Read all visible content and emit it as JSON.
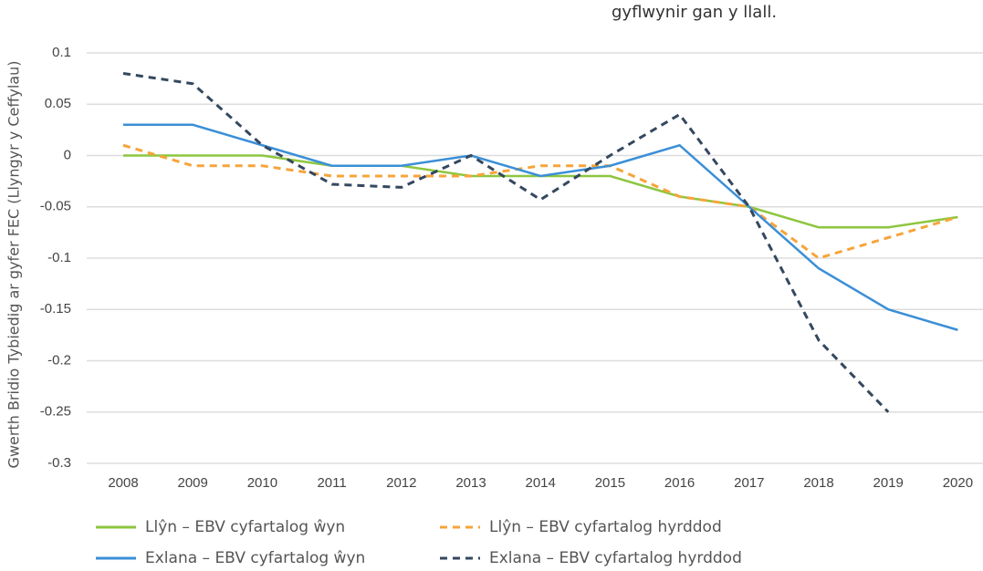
{
  "chart_data": {
    "type": "line",
    "subtitle": "gyflwynir gan y llall.",
    "ylabel": "Gwerth Bridio Tybiedig ar gyfer FEC (Llyngyr y Ceffylau)",
    "categories": [
      "2008",
      "2009",
      "2010",
      "2011",
      "2012",
      "2013",
      "2014",
      "2015",
      "2016",
      "2017",
      "2018",
      "2019",
      "2020"
    ],
    "series": [
      {
        "name": "Llŷn – EBV cyfartalog ŵyn",
        "color": "#8dc63f",
        "dashed": false,
        "values": [
          0,
          0,
          0,
          -0.01,
          -0.01,
          -0.02,
          -0.02,
          -0.02,
          -0.04,
          -0.05,
          -0.07,
          -0.07,
          -0.06
        ]
      },
      {
        "name": "Llŷn – EBV cyfartalog hyrddod",
        "color": "#f7a43a",
        "dashed": true,
        "values": [
          0.01,
          -0.01,
          -0.01,
          -0.02,
          -0.02,
          -0.02,
          -0.01,
          -0.01,
          -0.04,
          -0.05,
          -0.1,
          -0.08,
          -0.06
        ]
      },
      {
        "name": "Exlana – EBV cyfartalog ŵyn",
        "color": "#3b8fd6",
        "dashed": false,
        "values": [
          0.03,
          0.03,
          0.01,
          -0.01,
          -0.01,
          0,
          -0.02,
          -0.01,
          0.01,
          -0.05,
          -0.11,
          -0.15,
          -0.17
        ]
      },
      {
        "name": "Exlana – EBV cyfartalog hyrddod",
        "color": "#34485e",
        "dashed": true,
        "values": [
          0.08,
          0.07,
          0.01,
          -0.028,
          -0.031,
          0,
          -0.043,
          0,
          0.04,
          -0.05,
          -0.18,
          -0.25,
          null
        ]
      }
    ],
    "ylim": [
      -0.3,
      0.1
    ],
    "yticks": [
      0.1,
      0.05,
      0,
      -0.05,
      -0.1,
      -0.15,
      -0.2,
      -0.25,
      -0.3
    ],
    "grid": true
  }
}
